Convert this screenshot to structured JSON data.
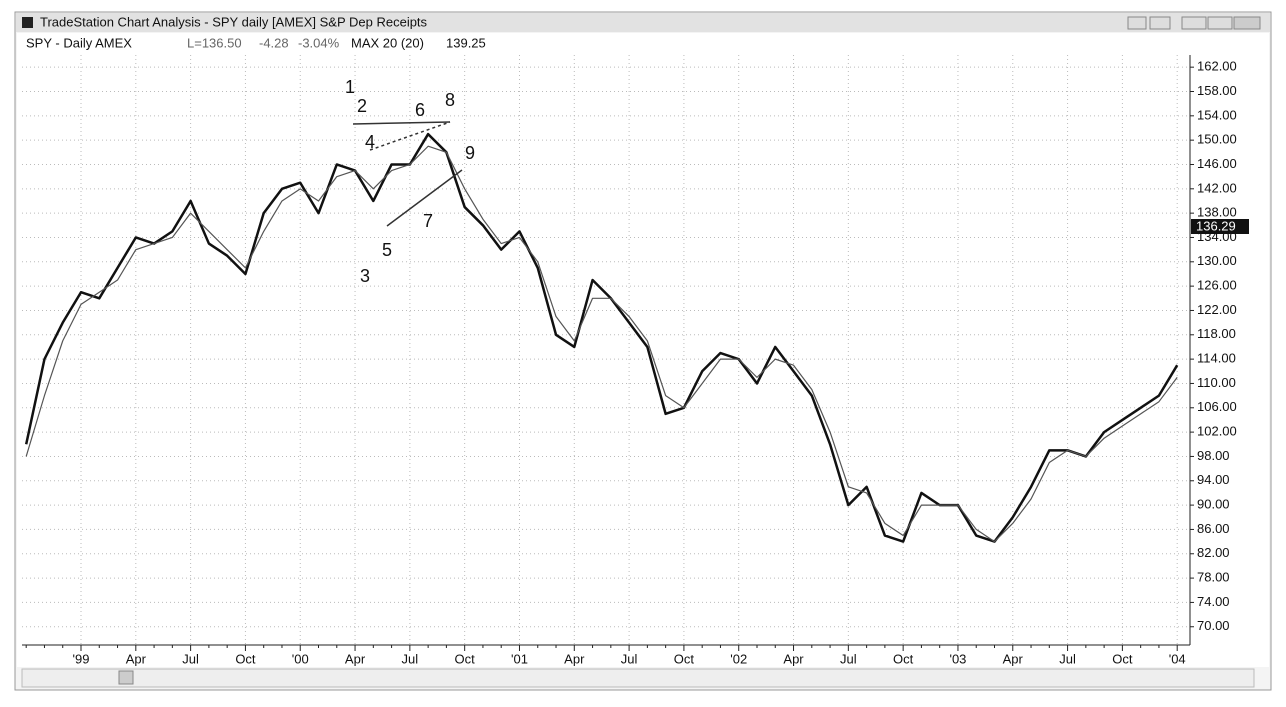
{
  "chart_data": {
    "type": "line",
    "title": "TradeStation Chart Analysis - SPY daily [AMEX] S&P Dep Receipts",
    "last": "L=136.50",
    "change": "-4.28",
    "change_pct": "-3.04%",
    "ma_value": "139.25",
    "price_marker": "136.29",
    "annotations": [
      "1",
      "2",
      "3",
      "4",
      "5",
      "6",
      "7",
      "8",
      "9"
    ],
    "categories": [
      null,
      null,
      null,
      "'99",
      null,
      null,
      "Apr",
      null,
      null,
      "Jul",
      null,
      null,
      "Oct",
      null,
      null,
      "'00",
      null,
      null,
      "Apr",
      null,
      null,
      "Jul",
      null,
      null,
      "Oct",
      null,
      null,
      "'01",
      null,
      null,
      "Apr",
      null,
      null,
      "Jul",
      null,
      null,
      "Oct",
      null,
      null,
      "'02",
      null,
      null,
      "Apr",
      null,
      null,
      "Jul",
      null,
      null,
      "Oct",
      null,
      null,
      "'03",
      null,
      null,
      "Apr",
      null,
      null,
      "Jul",
      null,
      null,
      "Oct",
      null,
      null,
      "'04"
    ],
    "series": [
      {
        "name": "SPY - Daily AMEX",
        "color": "#111111",
        "values": [
          100,
          114,
          120,
          125,
          124,
          129,
          134,
          133,
          135,
          140,
          133,
          131,
          128,
          138,
          142,
          143,
          138,
          146,
          145,
          140,
          146,
          146,
          151,
          148,
          139,
          136,
          132,
          135,
          129,
          118,
          116,
          127,
          124,
          120,
          116,
          105,
          106,
          112,
          115,
          114,
          110,
          116,
          112,
          108,
          100,
          90,
          93,
          85,
          84,
          92,
          90,
          90,
          85,
          84,
          88,
          93,
          99,
          99,
          98,
          102,
          104,
          106,
          108,
          113
        ]
      },
      {
        "name": "MAX 20 (20)",
        "color": "#555555",
        "values": [
          98,
          108,
          117,
          123,
          125,
          127,
          132,
          133,
          134,
          138,
          135,
          132,
          129,
          135,
          140,
          142,
          140,
          144,
          145,
          142,
          145,
          146,
          149,
          148,
          142,
          137,
          133,
          134,
          130,
          121,
          117,
          124,
          124,
          121,
          117,
          108,
          106,
          110,
          114,
          114,
          111,
          114,
          113,
          109,
          102,
          93,
          92,
          87,
          85,
          90,
          90,
          90,
          86,
          84,
          87,
          91,
          97,
          99,
          98,
          101,
          103,
          105,
          107,
          111
        ]
      }
    ],
    "ylim": [
      67,
      164
    ],
    "yticks": [
      {
        "value": 70,
        "label": "70.00"
      },
      {
        "value": 74,
        "label": "74.00"
      },
      {
        "value": 78,
        "label": "78.00"
      },
      {
        "value": 82,
        "label": "82.00"
      },
      {
        "value": 86,
        "label": "86.00"
      },
      {
        "value": 90,
        "label": "90.00"
      },
      {
        "value": 94,
        "label": "94.00"
      },
      {
        "value": 98,
        "label": "98.00"
      },
      {
        "value": 102,
        "label": "102.00"
      },
      {
        "value": 106,
        "label": "106.00"
      },
      {
        "value": 110,
        "label": "110.00"
      },
      {
        "value": 114,
        "label": "114.00"
      },
      {
        "value": 118,
        "label": "118.00"
      },
      {
        "value": 122,
        "label": "122.00"
      },
      {
        "value": 126,
        "label": "126.00"
      },
      {
        "value": 130,
        "label": "130.00"
      },
      {
        "value": 134,
        "label": "134.00"
      },
      {
        "value": 138,
        "label": "138.00"
      },
      {
        "value": 142,
        "label": "142.00"
      },
      {
        "value": 146,
        "label": "146.00"
      },
      {
        "value": 150,
        "label": "150.00"
      },
      {
        "value": 154,
        "label": "154.00"
      },
      {
        "value": 158,
        "label": "158.00"
      },
      {
        "value": 162,
        "label": "162.00"
      }
    ],
    "grid": true
  }
}
